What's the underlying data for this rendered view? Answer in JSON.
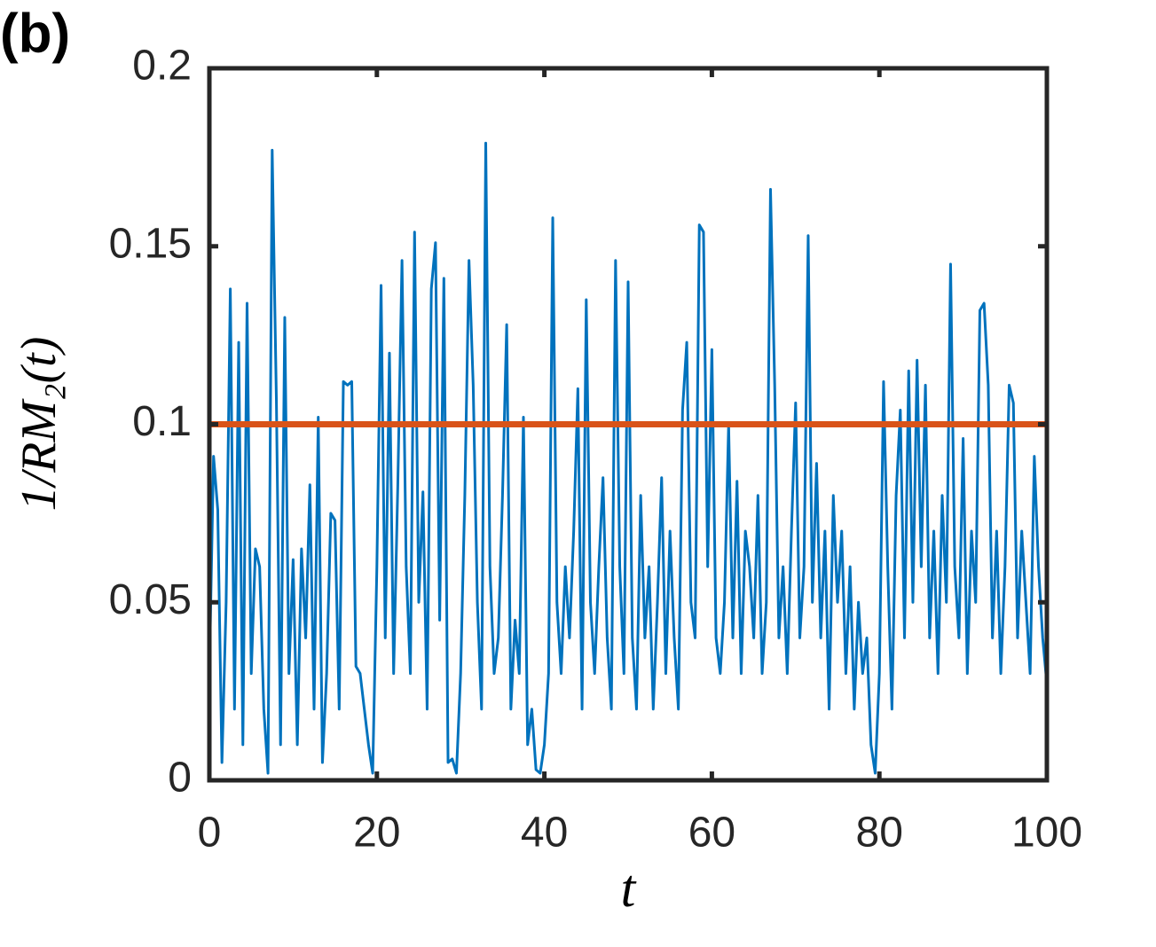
{
  "chart_data": {
    "type": "line",
    "title": "(b)",
    "xlabel": "t",
    "ylabel": "1/RM₂(t)",
    "xlim": [
      0,
      100
    ],
    "ylim": [
      0,
      0.2
    ],
    "xticks": [
      0,
      20,
      40,
      60,
      80,
      100
    ],
    "yticks": [
      0,
      0.05,
      0.1,
      0.15,
      0.2
    ],
    "series": [
      {
        "color": "#0072bd",
        "x": [
          0,
          0.5,
          1,
          1.5,
          2,
          2.5,
          3,
          3.5,
          4,
          4.5,
          5,
          5.5,
          6,
          6.5,
          7,
          7.5,
          8,
          8.5,
          9,
          9.5,
          10,
          10.5,
          11,
          11.5,
          12,
          12.5,
          13,
          13.5,
          14,
          14.5,
          15,
          15.5,
          16,
          16.5,
          17,
          17.5,
          18,
          18.5,
          19,
          19.5,
          20,
          20.5,
          21,
          21.5,
          22,
          22.5,
          23,
          23.5,
          24,
          24.5,
          25,
          25.5,
          26,
          26.5,
          27,
          27.5,
          28,
          28.5,
          29,
          29.5,
          30,
          30.5,
          31,
          31.5,
          32,
          32.5,
          33,
          33.5,
          34,
          34.5,
          35,
          35.5,
          36,
          36.5,
          37,
          37.5,
          38,
          38.5,
          39,
          39.5,
          40,
          40.5,
          41,
          41.5,
          42,
          42.5,
          43,
          43.5,
          44,
          44.5,
          45,
          45.5,
          46,
          46.5,
          47,
          47.5,
          48,
          48.5,
          49,
          49.5,
          50,
          50.5,
          51,
          51.5,
          52,
          52.5,
          53,
          53.5,
          54,
          54.5,
          55,
          55.5,
          56,
          56.5,
          57,
          57.5,
          58,
          58.5,
          59,
          59.5,
          60,
          60.5,
          61,
          61.5,
          62,
          62.5,
          63,
          63.5,
          64,
          64.5,
          65,
          65.5,
          66,
          66.5,
          67,
          67.5,
          68,
          68.5,
          69,
          69.5,
          70,
          70.5,
          71,
          71.5,
          72,
          72.5,
          73,
          73.5,
          74,
          74.5,
          75,
          75.5,
          76,
          76.5,
          77,
          77.5,
          78,
          78.5,
          79,
          79.5,
          80,
          80.5,
          81,
          81.5,
          82,
          82.5,
          83,
          83.5,
          84,
          84.5,
          85,
          85.5,
          86,
          86.5,
          87,
          87.5,
          88,
          88.5,
          89,
          89.5,
          90,
          90.5,
          91,
          91.5,
          92,
          92.5,
          93,
          93.5,
          94,
          94.5,
          95,
          95.5,
          96,
          96.5,
          97,
          97.5,
          98,
          98.5,
          99,
          99.5,
          100
        ],
        "values": [
          0.03,
          0.091,
          0.076,
          0.005,
          0.05,
          0.138,
          0.02,
          0.123,
          0.01,
          0.134,
          0.03,
          0.065,
          0.06,
          0.02,
          0.002,
          0.177,
          0.107,
          0.01,
          0.13,
          0.03,
          0.062,
          0.01,
          0.065,
          0.04,
          0.083,
          0.02,
          0.102,
          0.005,
          0.03,
          0.075,
          0.073,
          0.02,
          0.112,
          0.111,
          0.112,
          0.032,
          0.03,
          0.02,
          0.01,
          0.002,
          0.06,
          0.139,
          0.04,
          0.12,
          0.03,
          0.083,
          0.146,
          0.06,
          0.03,
          0.154,
          0.05,
          0.081,
          0.02,
          0.138,
          0.151,
          0.045,
          0.141,
          0.005,
          0.006,
          0.002,
          0.03,
          0.08,
          0.146,
          0.111,
          0.05,
          0.02,
          0.179,
          0.06,
          0.03,
          0.04,
          0.08,
          0.128,
          0.02,
          0.045,
          0.03,
          0.102,
          0.01,
          0.02,
          0.003,
          0.002,
          0.01,
          0.03,
          0.158,
          0.05,
          0.03,
          0.06,
          0.04,
          0.07,
          0.11,
          0.02,
          0.135,
          0.05,
          0.03,
          0.06,
          0.085,
          0.04,
          0.02,
          0.146,
          0.06,
          0.03,
          0.14,
          0.04,
          0.02,
          0.08,
          0.04,
          0.06,
          0.02,
          0.05,
          0.085,
          0.03,
          0.07,
          0.04,
          0.02,
          0.104,
          0.123,
          0.05,
          0.04,
          0.156,
          0.154,
          0.06,
          0.121,
          0.04,
          0.03,
          0.05,
          0.1,
          0.04,
          0.084,
          0.03,
          0.07,
          0.06,
          0.04,
          0.08,
          0.03,
          0.05,
          0.166,
          0.111,
          0.04,
          0.06,
          0.03,
          0.07,
          0.106,
          0.04,
          0.06,
          0.153,
          0.05,
          0.089,
          0.04,
          0.07,
          0.02,
          0.08,
          0.05,
          0.07,
          0.03,
          0.06,
          0.02,
          0.05,
          0.03,
          0.04,
          0.01,
          0.002,
          0.03,
          0.112,
          0.06,
          0.02,
          0.08,
          0.104,
          0.04,
          0.115,
          0.05,
          0.118,
          0.06,
          0.111,
          0.04,
          0.07,
          0.03,
          0.08,
          0.05,
          0.145,
          0.06,
          0.04,
          0.096,
          0.03,
          0.07,
          0.05,
          0.132,
          0.134,
          0.111,
          0.04,
          0.07,
          0.03,
          0.06,
          0.111,
          0.106,
          0.04,
          0.07,
          0.05,
          0.03,
          0.091,
          0.06,
          0.04,
          0.027
        ]
      },
      {
        "color": "#d95319",
        "x": [
          0,
          100
        ],
        "values": [
          0.1,
          0.1
        ]
      }
    ]
  }
}
